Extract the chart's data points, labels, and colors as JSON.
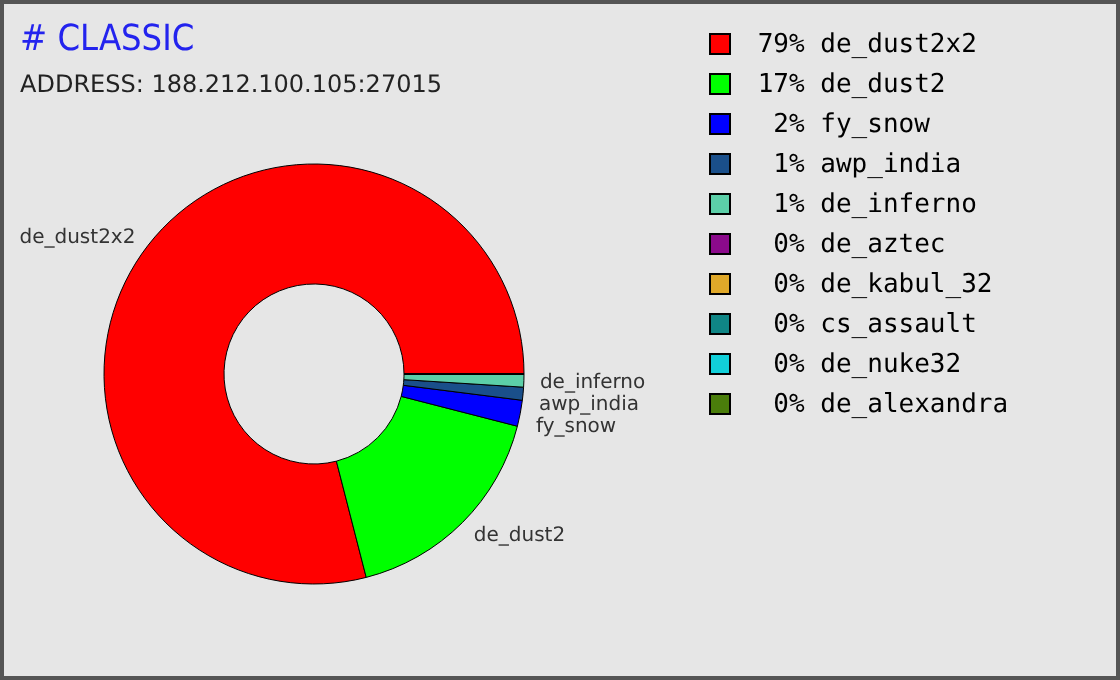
{
  "chart_data": {
    "type": "donut",
    "title": "# CLASSIC",
    "subtitle": "ADDRESS: 188.212.100.105:27015",
    "categories": [
      "de_dust2x2",
      "de_dust2",
      "fy_snow",
      "awp_india",
      "de_inferno",
      "de_aztec",
      "de_kabul_32",
      "cs_assault",
      "de_nuke32",
      "de_alexandra"
    ],
    "values": [
      79,
      17,
      2,
      1,
      1,
      0,
      0,
      0,
      0,
      0
    ],
    "colors": [
      "#ff0000",
      "#00ff00",
      "#0000ff",
      "#1a4f8a",
      "#5ccfa8",
      "#8b0a8b",
      "#dfa829",
      "#0f8585",
      "#11cfd9",
      "#4a7d0b"
    ],
    "value_labels": [
      "79%",
      "17%",
      "2%",
      "1%",
      "1%",
      "0%",
      "0%",
      "0%",
      "0%",
      "0%"
    ],
    "legend": "right"
  }
}
